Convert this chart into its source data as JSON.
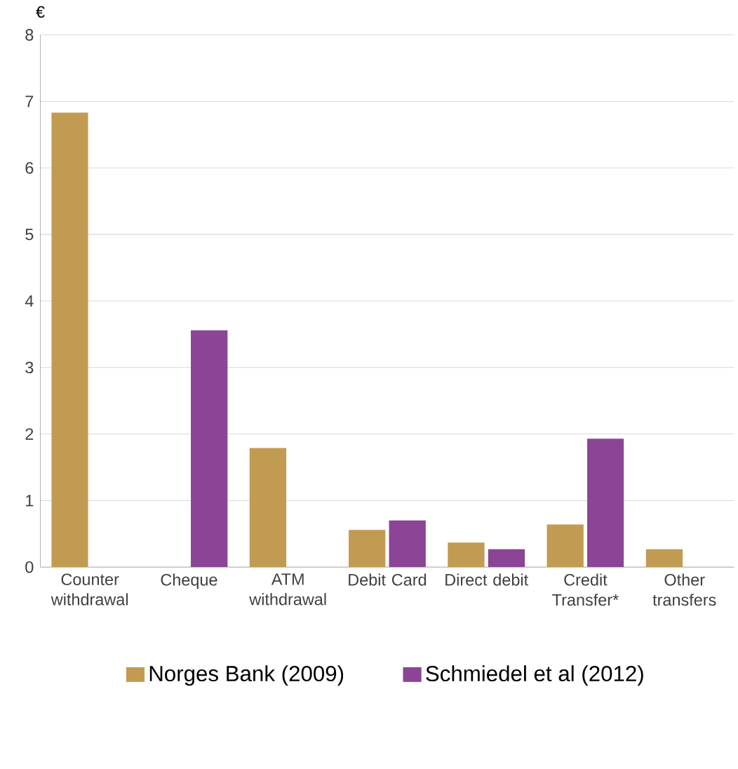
{
  "chart_data": {
    "type": "bar",
    "ylabel": "€",
    "categories": [
      "Counter withdrawal",
      "Cheque",
      "ATM withdrawal",
      "Debit Card",
      "Direct debit",
      "Credit Transfer*",
      "Other transfers"
    ],
    "series": [
      {
        "name": "Norges Bank (2009)",
        "color": "#c29b52",
        "values": [
          6.83,
          null,
          1.79,
          0.56,
          0.37,
          0.64,
          0.27
        ]
      },
      {
        "name": "Schmiedel et al (2012)",
        "color": "#8b4496",
        "values": [
          null,
          3.56,
          null,
          0.7,
          0.27,
          1.93,
          null
        ]
      }
    ],
    "ylim": [
      0,
      8
    ],
    "yticks": [
      0,
      1,
      2,
      3,
      4,
      5,
      6,
      7,
      8
    ],
    "grid": "y",
    "legend": "bottom"
  }
}
